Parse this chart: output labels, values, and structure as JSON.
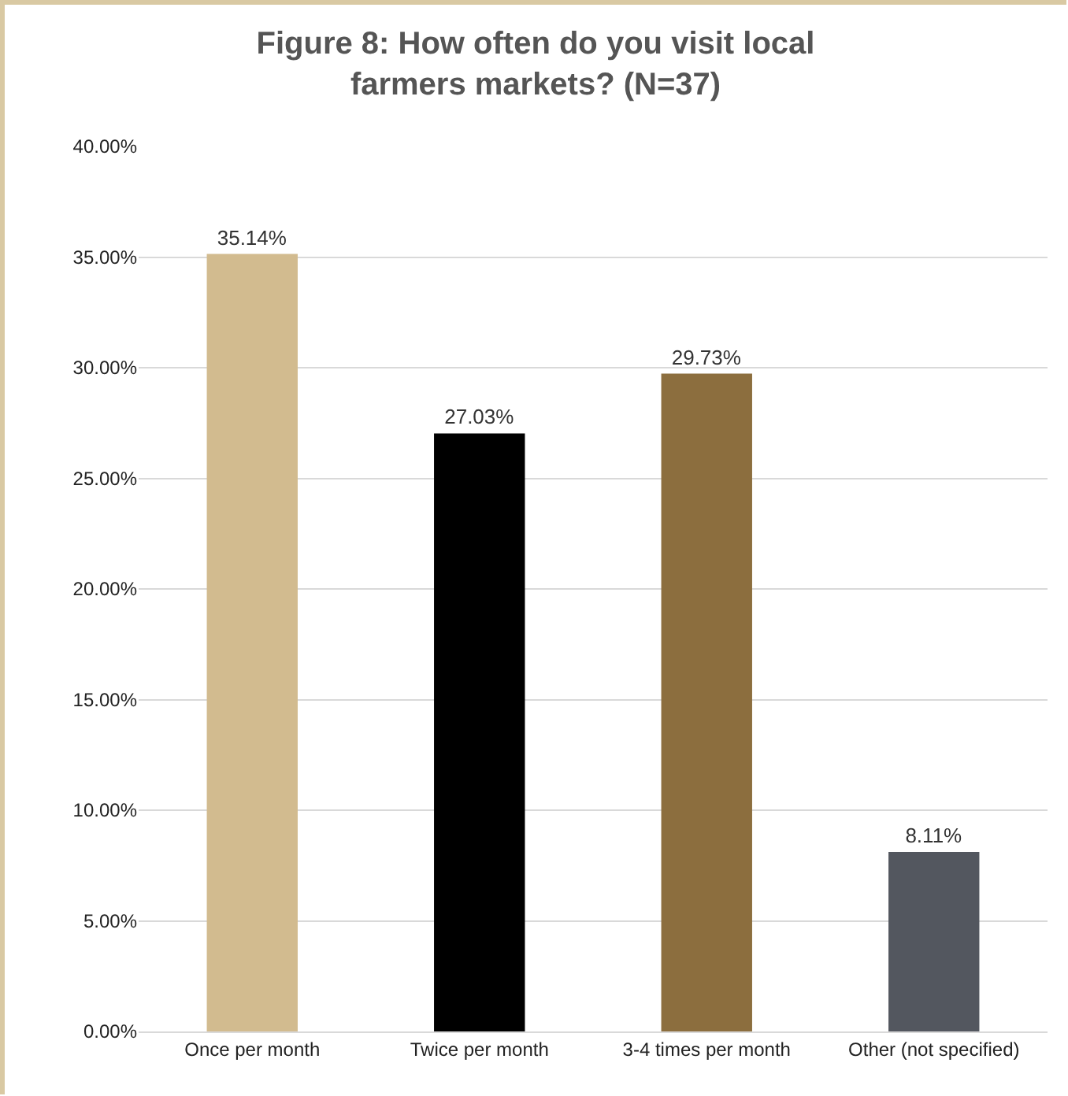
{
  "chart_data": {
    "type": "bar",
    "title": "Figure 8: How often do you visit local farmers markets? (N=37)",
    "categories": [
      "Once per month",
      "Twice per month",
      "3-4 times per month",
      "Other (not specified)"
    ],
    "values": [
      35.14,
      27.03,
      29.73,
      8.11
    ],
    "colors": [
      "#d2bb8f",
      "#000000",
      "#8c6e3e",
      "#53575f"
    ],
    "value_labels": [
      "35.14%",
      "27.03%",
      "29.73%",
      "8.11%"
    ],
    "ylim": [
      0,
      40
    ],
    "yticks": [
      {
        "value": 0,
        "label": "0.00%"
      },
      {
        "value": 5,
        "label": "5.00%"
      },
      {
        "value": 10,
        "label": "10.00%"
      },
      {
        "value": 15,
        "label": "15.00%"
      },
      {
        "value": 20,
        "label": "20.00%"
      },
      {
        "value": 25,
        "label": "25.00%"
      },
      {
        "value": 30,
        "label": "30.00%"
      },
      {
        "value": 35,
        "label": "35.00%"
      },
      {
        "value": 40,
        "label": "40.00%"
      }
    ],
    "grid": "y"
  }
}
